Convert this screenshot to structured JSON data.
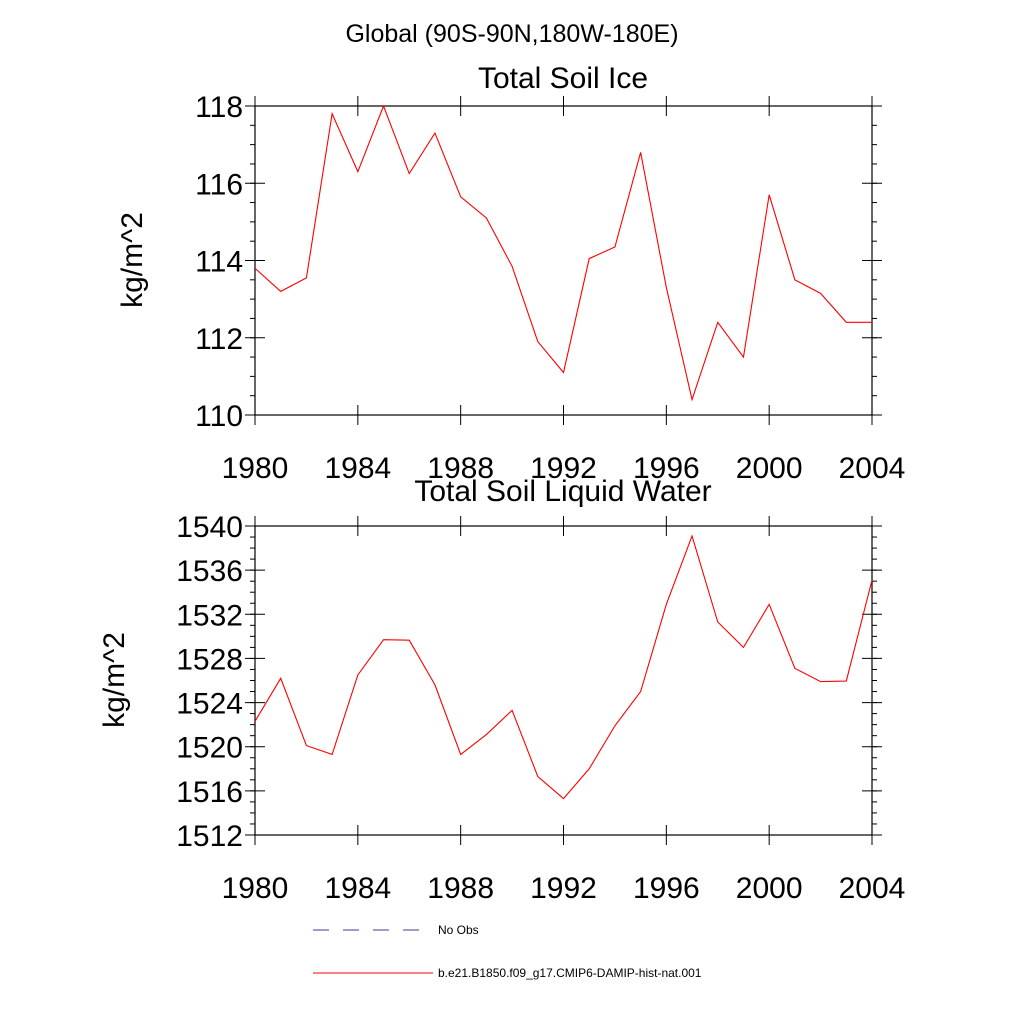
{
  "suptitle": "Global (90S-90N,180W-180E)",
  "series_colors": {
    "model": "#ff0000",
    "obs": "#3b3b8f"
  },
  "chart_data": [
    {
      "type": "line",
      "title": "Total Soil Ice",
      "ylabel": "kg/m^2",
      "xlim": [
        1980,
        2004
      ],
      "ylim": [
        110,
        118
      ],
      "xticks": [
        1980,
        1984,
        1988,
        1992,
        1996,
        2000,
        2004
      ],
      "yticks": [
        110,
        112,
        114,
        116,
        118
      ],
      "x": [
        1980,
        1981,
        1982,
        1983,
        1984,
        1985,
        1986,
        1987,
        1988,
        1989,
        1990,
        1991,
        1992,
        1993,
        1994,
        1995,
        1996,
        1997,
        1998,
        1999,
        2000,
        2001,
        2002,
        2003,
        2004
      ],
      "series": [
        {
          "name": "b.e21.B1850.f09_g17.CMIP6-DAMIP-hist-nat.001",
          "values": [
            113.8,
            113.2,
            113.55,
            117.8,
            116.3,
            118.0,
            116.25,
            117.3,
            115.65,
            115.1,
            113.85,
            111.9,
            111.1,
            114.05,
            114.35,
            116.8,
            113.3,
            110.4,
            112.4,
            111.5,
            115.7,
            113.5,
            113.15,
            112.4,
            112.4
          ]
        }
      ]
    },
    {
      "type": "line",
      "title": "Total Soil Liquid Water",
      "ylabel": "kg/m^2",
      "xlim": [
        1980,
        2004
      ],
      "ylim": [
        1512,
        1540
      ],
      "xticks": [
        1980,
        1984,
        1988,
        1992,
        1996,
        2000,
        2004
      ],
      "yticks": [
        1512,
        1516,
        1520,
        1524,
        1528,
        1532,
        1536,
        1540
      ],
      "x": [
        1980,
        1981,
        1982,
        1983,
        1984,
        1985,
        1986,
        1987,
        1988,
        1989,
        1990,
        1991,
        1992,
        1993,
        1994,
        1995,
        1996,
        1997,
        1998,
        1999,
        2000,
        2001,
        2002,
        2003,
        2004
      ],
      "series": [
        {
          "name": "b.e21.B1850.f09_g17.CMIP6-DAMIP-hist-nat.001",
          "values": [
            1522.3,
            1526.2,
            1520.1,
            1519.3,
            1526.5,
            1529.7,
            1529.65,
            1525.6,
            1519.3,
            1521.1,
            1523.3,
            1517.3,
            1515.3,
            1518.0,
            1521.9,
            1525.0,
            1532.9,
            1539.1,
            1531.3,
            1529.0,
            1532.9,
            1527.1,
            1525.9,
            1525.95,
            1535.1
          ]
        }
      ]
    }
  ],
  "legend": [
    {
      "label": "No Obs",
      "style": "dashed",
      "color": "#3b3b8f"
    },
    {
      "label": "b.e21.B1850.f09_g17.CMIP6-DAMIP-hist-nat.001",
      "style": "solid",
      "color": "#ff0000"
    }
  ]
}
